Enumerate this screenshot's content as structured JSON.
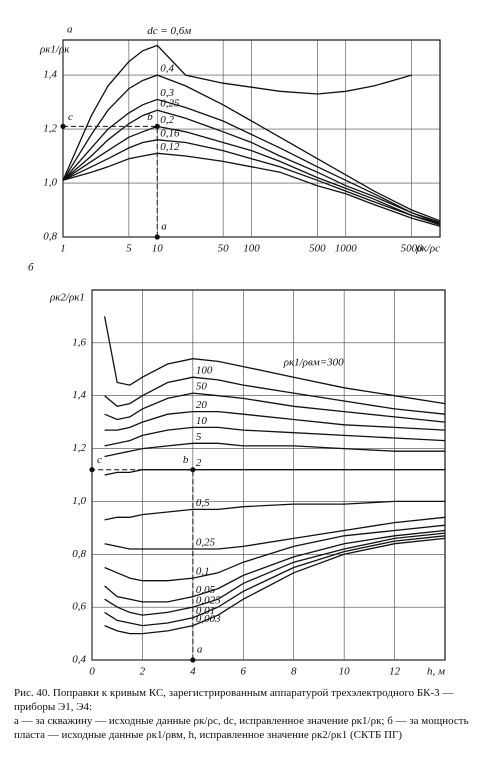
{
  "chart_data": [
    {
      "type": "line",
      "title": "а",
      "x_label": "ρк/ρс",
      "y_label": "ρк1/ρк",
      "xscale": "log",
      "grid": true,
      "color": "#111",
      "x": [
        1,
        2,
        3,
        5,
        7,
        10,
        20,
        50,
        100,
        200,
        500,
        1000,
        2000,
        5000,
        10000
      ],
      "xlim": [
        1,
        10000
      ],
      "xticks": [
        1,
        5,
        10,
        50,
        100,
        500,
        1000,
        5000
      ],
      "ylim": [
        0.8,
        1.53
      ],
      "yticks": [
        {
          "value": 0.8,
          "label": "0,8"
        },
        {
          "value": 1.0,
          "label": "1,0"
        },
        {
          "value": 1.2,
          "label": "1,2"
        },
        {
          "value": 1.4,
          "label": "1,4"
        }
      ],
      "annotations": [
        "c",
        "b",
        "a"
      ],
      "series": [
        {
          "name": "dс = 0,6м",
          "values": [
            1.01,
            1.25,
            1.36,
            1.45,
            1.49,
            1.51,
            1.4,
            1.37,
            1.355,
            1.34,
            1.33,
            1.34,
            1.36,
            1.4,
            null
          ]
        },
        {
          "name": "0,4",
          "values": [
            1.01,
            1.18,
            1.27,
            1.35,
            1.38,
            1.4,
            1.36,
            1.29,
            1.23,
            1.17,
            1.09,
            1.03,
            0.97,
            0.9,
            0.86
          ]
        },
        {
          "name": "0,3",
          "values": [
            1.01,
            1.13,
            1.2,
            1.26,
            1.29,
            1.31,
            1.28,
            1.23,
            1.18,
            1.13,
            1.06,
            1.01,
            0.96,
            0.89,
            0.855
          ]
        },
        {
          "name": "0,25",
          "values": [
            1.01,
            1.1,
            1.16,
            1.22,
            1.25,
            1.27,
            1.24,
            1.19,
            1.15,
            1.1,
            1.04,
            0.99,
            0.95,
            0.89,
            0.85
          ]
        },
        {
          "name": "0,2",
          "values": [
            1.01,
            1.08,
            1.12,
            1.17,
            1.19,
            1.21,
            1.19,
            1.15,
            1.12,
            1.08,
            1.02,
            0.98,
            0.94,
            0.88,
            0.85
          ]
        },
        {
          "name": "0,16",
          "values": [
            1.01,
            1.06,
            1.09,
            1.13,
            1.15,
            1.16,
            1.15,
            1.12,
            1.09,
            1.06,
            1.01,
            0.97,
            0.93,
            0.88,
            0.845
          ]
        },
        {
          "name": "0,12",
          "values": [
            1.01,
            1.04,
            1.06,
            1.09,
            1.1,
            1.11,
            1.1,
            1.08,
            1.06,
            1.04,
            0.99,
            0.96,
            0.92,
            0.87,
            0.84
          ]
        }
      ]
    },
    {
      "type": "line",
      "title": "б",
      "x_label": "h, м",
      "y_label": "ρк2/ρк1",
      "grid": true,
      "color": "#111",
      "x": [
        0.5,
        1,
        1.5,
        2,
        3,
        4,
        5,
        6,
        8,
        10,
        12,
        14
      ],
      "xlim": [
        0,
        14
      ],
      "xticks": [
        0,
        2,
        4,
        6,
        8,
        10,
        12
      ],
      "ylim": [
        0.4,
        1.8
      ],
      "yticks": [
        {
          "value": 0.4,
          "label": "0,4"
        },
        {
          "value": 0.6,
          "label": "0,6"
        },
        {
          "value": 0.8,
          "label": "0,8"
        },
        {
          "value": 1.0,
          "label": "1,0"
        },
        {
          "value": 1.2,
          "label": "1,2"
        },
        {
          "value": 1.4,
          "label": "1,4"
        },
        {
          "value": 1.6,
          "label": "1,6"
        }
      ],
      "annotations": [
        "c",
        "b",
        "a"
      ],
      "series": [
        {
          "name": "ρк1/ρвм=300",
          "values": [
            1.7,
            1.45,
            1.44,
            1.47,
            1.52,
            1.54,
            1.53,
            1.51,
            1.47,
            1.43,
            1.4,
            1.37
          ]
        },
        {
          "name": "100",
          "values": [
            1.4,
            1.36,
            1.37,
            1.4,
            1.45,
            1.47,
            1.46,
            1.44,
            1.41,
            1.38,
            1.35,
            1.33
          ]
        },
        {
          "name": "50",
          "values": [
            1.33,
            1.31,
            1.32,
            1.35,
            1.39,
            1.41,
            1.4,
            1.39,
            1.36,
            1.34,
            1.32,
            1.3
          ]
        },
        {
          "name": "20",
          "values": [
            1.27,
            1.27,
            1.28,
            1.3,
            1.33,
            1.34,
            1.34,
            1.33,
            1.31,
            1.29,
            1.28,
            1.27
          ]
        },
        {
          "name": "10",
          "values": [
            1.21,
            1.22,
            1.23,
            1.25,
            1.27,
            1.28,
            1.28,
            1.27,
            1.26,
            1.25,
            1.24,
            1.23
          ]
        },
        {
          "name": "5",
          "values": [
            1.17,
            1.18,
            1.19,
            1.2,
            1.21,
            1.22,
            1.22,
            1.21,
            1.21,
            1.2,
            1.19,
            1.19
          ]
        },
        {
          "name": "2",
          "values": [
            1.1,
            1.11,
            1.11,
            1.12,
            1.12,
            1.12,
            1.12,
            1.12,
            1.12,
            1.12,
            1.12,
            1.12
          ]
        },
        {
          "name": "0,5",
          "values": [
            0.93,
            0.94,
            0.94,
            0.95,
            0.96,
            0.97,
            0.97,
            0.98,
            0.99,
            0.99,
            1.0,
            1.0
          ]
        },
        {
          "name": "0,25",
          "values": [
            0.84,
            0.83,
            0.82,
            0.82,
            0.82,
            0.82,
            0.82,
            0.83,
            0.86,
            0.89,
            0.92,
            0.94
          ]
        },
        {
          "name": "0,1",
          "values": [
            0.75,
            0.73,
            0.71,
            0.7,
            0.7,
            0.71,
            0.73,
            0.77,
            0.83,
            0.87,
            0.89,
            0.91
          ]
        },
        {
          "name": "0,05",
          "values": [
            0.68,
            0.64,
            0.63,
            0.62,
            0.62,
            0.64,
            0.67,
            0.72,
            0.79,
            0.84,
            0.87,
            0.89
          ]
        },
        {
          "name": "0,025",
          "values": [
            0.63,
            0.6,
            0.58,
            0.57,
            0.58,
            0.6,
            0.63,
            0.69,
            0.77,
            0.82,
            0.86,
            0.88
          ]
        },
        {
          "name": "0,01",
          "values": [
            0.58,
            0.55,
            0.54,
            0.53,
            0.54,
            0.56,
            0.6,
            0.66,
            0.75,
            0.81,
            0.85,
            0.87
          ]
        },
        {
          "name": "0,003",
          "values": [
            0.53,
            0.51,
            0.5,
            0.5,
            0.51,
            0.53,
            0.57,
            0.63,
            0.73,
            0.8,
            0.84,
            0.86
          ]
        }
      ]
    }
  ],
  "caption": {
    "title": "Рис. 40. Поправки к кривым КС, зарегистрированным аппаратурой трехэлектродного БК-3 — приборы Э1, Э4:",
    "text": "а — за скважину — исходные данные ρк/ρс, dс, исправленное значение ρк1/ρк; б — за мощность пласта — исходные данные ρк1/ρвм, h, исправленное значение ρк2/ρк1 (СКТБ ПГ)"
  }
}
